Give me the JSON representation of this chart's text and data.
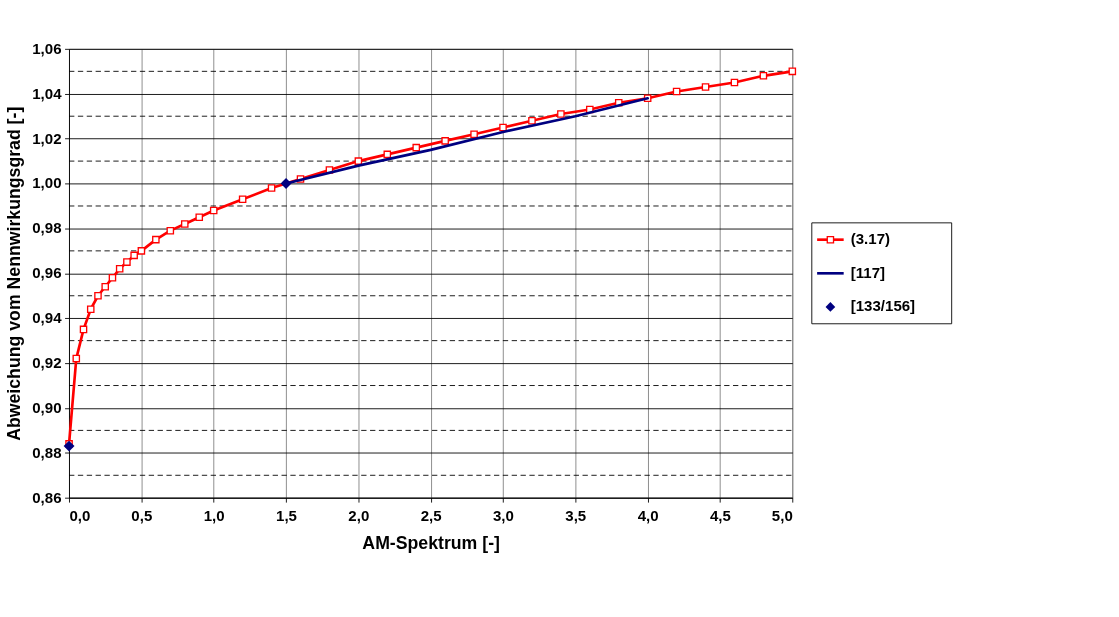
{
  "chart_data": {
    "type": "line",
    "xlabel": "AM-Spektrum [-]",
    "ylabel": "Abweichung vom Nennwirkungsgrad [-]",
    "series": [
      {
        "name": "(3.17)",
        "type": "line",
        "color": "#ff0000",
        "marker": "square",
        "x": [
          0,
          0.05,
          0.1,
          0.15,
          0.2,
          0.25,
          0.3,
          0.35,
          0.4,
          0.45,
          0.5,
          0.6,
          0.7,
          0.8,
          0.9,
          1.0,
          1.2,
          1.4,
          1.6,
          1.8,
          2.0,
          2.2,
          2.4,
          2.6,
          2.8,
          3.0,
          3.2,
          3.4,
          3.6,
          3.8,
          4.0,
          4.2,
          4.4,
          4.6,
          4.8,
          5.0
        ],
        "values": [
          0.884,
          0.922,
          0.935,
          0.944,
          0.95,
          0.954,
          0.958,
          0.962,
          0.965,
          0.968,
          0.97,
          0.975,
          0.979,
          0.982,
          0.985,
          0.988,
          0.993,
          0.998,
          1.002,
          1.006,
          1.01,
          1.013,
          1.016,
          1.019,
          1.022,
          1.025,
          1.028,
          1.031,
          1.033,
          1.036,
          1.038,
          1.041,
          1.043,
          1.045,
          1.048,
          1.05
        ]
      },
      {
        "name": "[117]",
        "type": "line",
        "color": "#000080",
        "marker": "none",
        "x": [
          1.5,
          2.0,
          2.5,
          3.0,
          3.5,
          4.0
        ],
        "values": [
          1.0,
          1.008,
          1.015,
          1.023,
          1.03,
          1.038
        ]
      },
      {
        "name": "[133/156]",
        "type": "scatter",
        "color": "#000080",
        "marker": "diamond",
        "x": [
          0,
          1.5
        ],
        "values": [
          0.883,
          1.0
        ]
      }
    ],
    "xlim": [
      0,
      5
    ],
    "xticks": [
      {
        "value": 0,
        "label": "0,0"
      },
      {
        "value": 0.5,
        "label": "0,5"
      },
      {
        "value": 1,
        "label": "1,0"
      },
      {
        "value": 1.5,
        "label": "1,5"
      },
      {
        "value": 2,
        "label": "2,0"
      },
      {
        "value": 2.5,
        "label": "2,5"
      },
      {
        "value": 3,
        "label": "3,0"
      },
      {
        "value": 3.5,
        "label": "3,5"
      },
      {
        "value": 4,
        "label": "4,0"
      },
      {
        "value": 4.5,
        "label": "4,5"
      },
      {
        "value": 5,
        "label": "5,0"
      }
    ],
    "ylim": [
      0.86,
      1.06
    ],
    "yticks": [
      {
        "value": 0.86,
        "label": "0,86"
      },
      {
        "value": 0.87,
        "label": null
      },
      {
        "value": 0.88,
        "label": "0,88"
      },
      {
        "value": 0.89,
        "label": null
      },
      {
        "value": 0.9,
        "label": "0,90"
      },
      {
        "value": 0.91,
        "label": null
      },
      {
        "value": 0.92,
        "label": "0,92"
      },
      {
        "value": 0.93,
        "label": null
      },
      {
        "value": 0.94,
        "label": "0,94"
      },
      {
        "value": 0.95,
        "label": null
      },
      {
        "value": 0.96,
        "label": "0,96"
      },
      {
        "value": 0.97,
        "label": null
      },
      {
        "value": 0.98,
        "label": "0,98"
      },
      {
        "value": 0.99,
        "label": null
      },
      {
        "value": 1.0,
        "label": "1,00"
      },
      {
        "value": 1.01,
        "label": null
      },
      {
        "value": 1.02,
        "label": "1,02"
      },
      {
        "value": 1.03,
        "label": null
      },
      {
        "value": 1.04,
        "label": "1,04"
      },
      {
        "value": 1.05,
        "label": null
      },
      {
        "value": 1.06,
        "label": "1,06"
      }
    ],
    "grid": true,
    "legend": "right"
  }
}
